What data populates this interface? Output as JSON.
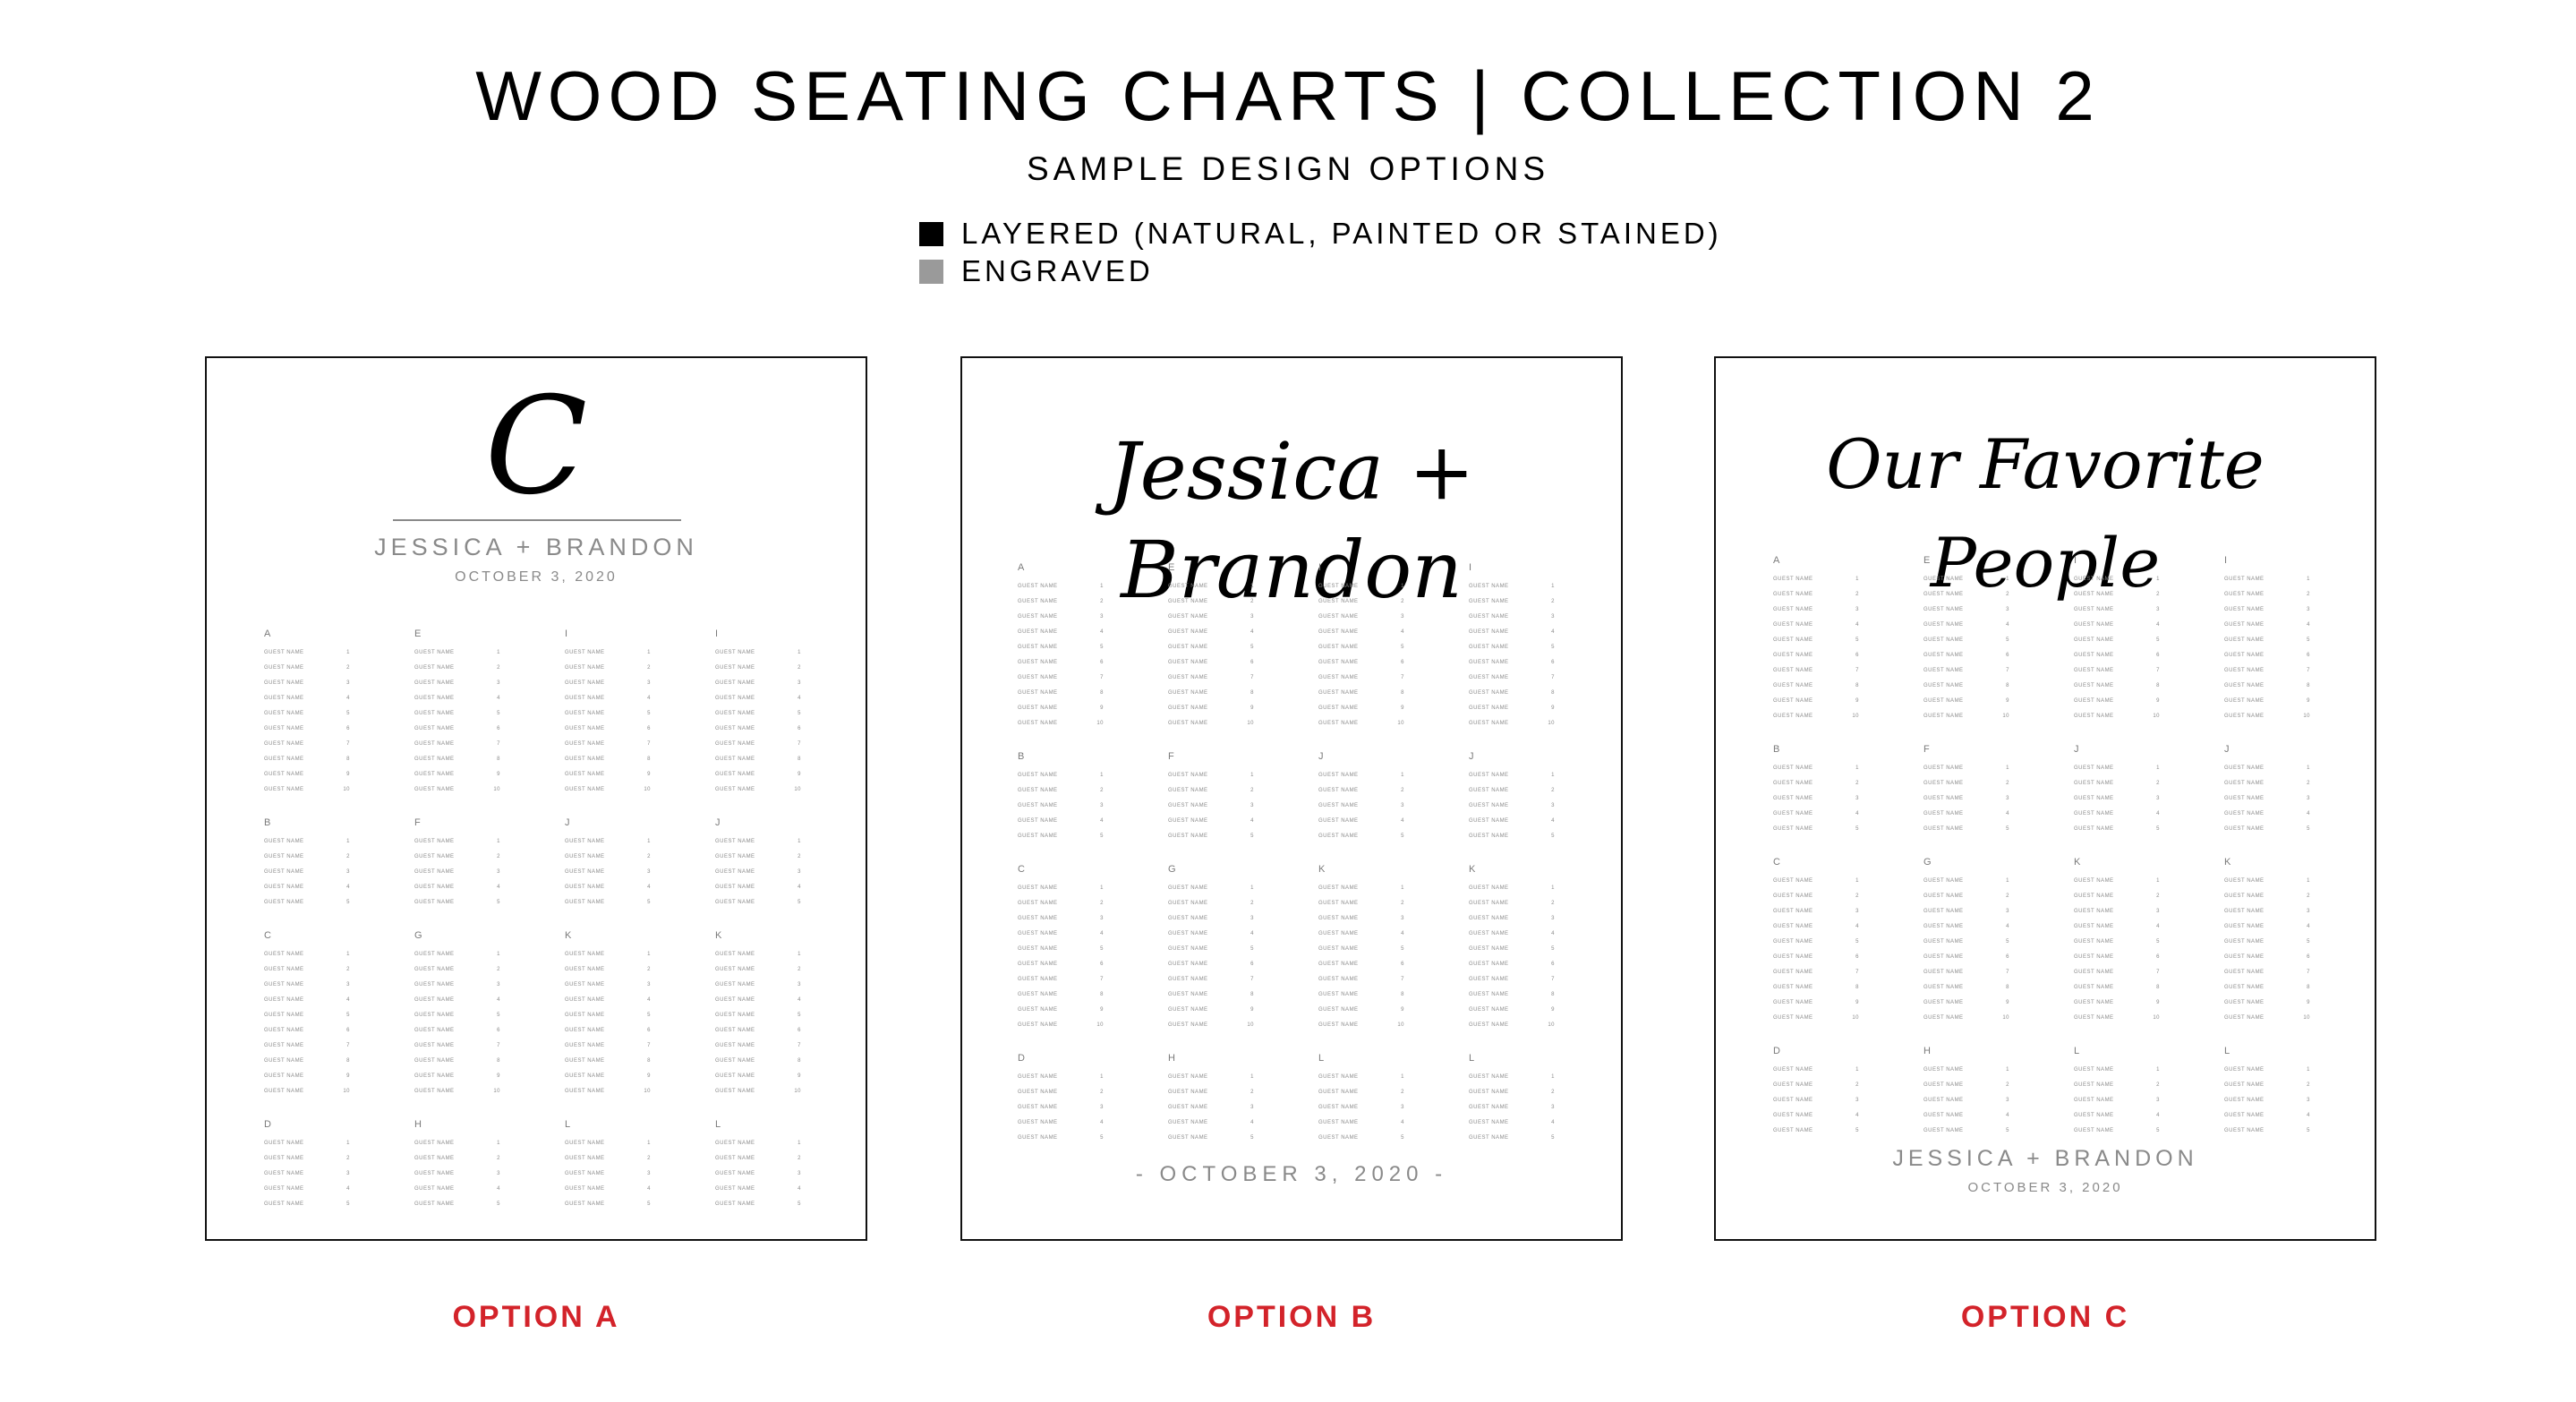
{
  "header": {
    "title": "WOOD SEATING CHARTS | COLLECTION 2",
    "subtitle": "SAMPLE DESIGN OPTIONS"
  },
  "legend": [
    {
      "label": "LAYERED (NATURAL, PAINTED OR STAINED)",
      "color": "#000000"
    },
    {
      "label": "ENGRAVED",
      "color": "#9a9a9a"
    }
  ],
  "colors": {
    "option_label": "#d3232a",
    "engraved_text": "#8a8a8a"
  },
  "guest_placeholder": "GUEST NAME",
  "options": [
    {
      "label": "OPTION A",
      "monogram": "C",
      "names": "JESSICA + BRANDON",
      "date": "OCTOBER 3, 2020",
      "columns": [
        [
          {
            "letter": "A",
            "count": 10
          },
          {
            "letter": "B",
            "count": 5
          },
          {
            "letter": "C",
            "count": 10
          },
          {
            "letter": "D",
            "count": 5
          }
        ],
        [
          {
            "letter": "E",
            "count": 10
          },
          {
            "letter": "F",
            "count": 5
          },
          {
            "letter": "G",
            "count": 10
          },
          {
            "letter": "H",
            "count": 5
          }
        ],
        [
          {
            "letter": "I",
            "count": 10
          },
          {
            "letter": "J",
            "count": 5
          },
          {
            "letter": "K",
            "count": 10
          },
          {
            "letter": "L",
            "count": 5
          }
        ],
        [
          {
            "letter": "I",
            "count": 10
          },
          {
            "letter": "J",
            "count": 5
          },
          {
            "letter": "K",
            "count": 10
          },
          {
            "letter": "L",
            "count": 5
          }
        ]
      ]
    },
    {
      "label": "OPTION B",
      "script_title": "Jessica + Brandon",
      "date": "- OCTOBER 3, 2020 -",
      "columns": [
        [
          {
            "letter": "A",
            "count": 10
          },
          {
            "letter": "B",
            "count": 5
          },
          {
            "letter": "C",
            "count": 10
          },
          {
            "letter": "D",
            "count": 5
          }
        ],
        [
          {
            "letter": "E",
            "count": 10
          },
          {
            "letter": "F",
            "count": 5
          },
          {
            "letter": "G",
            "count": 10
          },
          {
            "letter": "H",
            "count": 5
          }
        ],
        [
          {
            "letter": "I",
            "count": 10
          },
          {
            "letter": "J",
            "count": 5
          },
          {
            "letter": "K",
            "count": 10
          },
          {
            "letter": "L",
            "count": 5
          }
        ],
        [
          {
            "letter": "I",
            "count": 10
          },
          {
            "letter": "J",
            "count": 5
          },
          {
            "letter": "K",
            "count": 10
          },
          {
            "letter": "L",
            "count": 5
          }
        ]
      ]
    },
    {
      "label": "OPTION C",
      "script_title": "Our Favorite People",
      "names": "JESSICA + BRANDON",
      "date": "OCTOBER 3, 2020",
      "columns": [
        [
          {
            "letter": "A",
            "count": 10
          },
          {
            "letter": "B",
            "count": 5
          },
          {
            "letter": "C",
            "count": 10
          },
          {
            "letter": "D",
            "count": 5
          }
        ],
        [
          {
            "letter": "E",
            "count": 10
          },
          {
            "letter": "F",
            "count": 5
          },
          {
            "letter": "G",
            "count": 10
          },
          {
            "letter": "H",
            "count": 5
          }
        ],
        [
          {
            "letter": "I",
            "count": 10
          },
          {
            "letter": "J",
            "count": 5
          },
          {
            "letter": "K",
            "count": 10
          },
          {
            "letter": "L",
            "count": 5
          }
        ],
        [
          {
            "letter": "I",
            "count": 10
          },
          {
            "letter": "J",
            "count": 5
          },
          {
            "letter": "K",
            "count": 10
          },
          {
            "letter": "L",
            "count": 5
          }
        ]
      ]
    }
  ]
}
